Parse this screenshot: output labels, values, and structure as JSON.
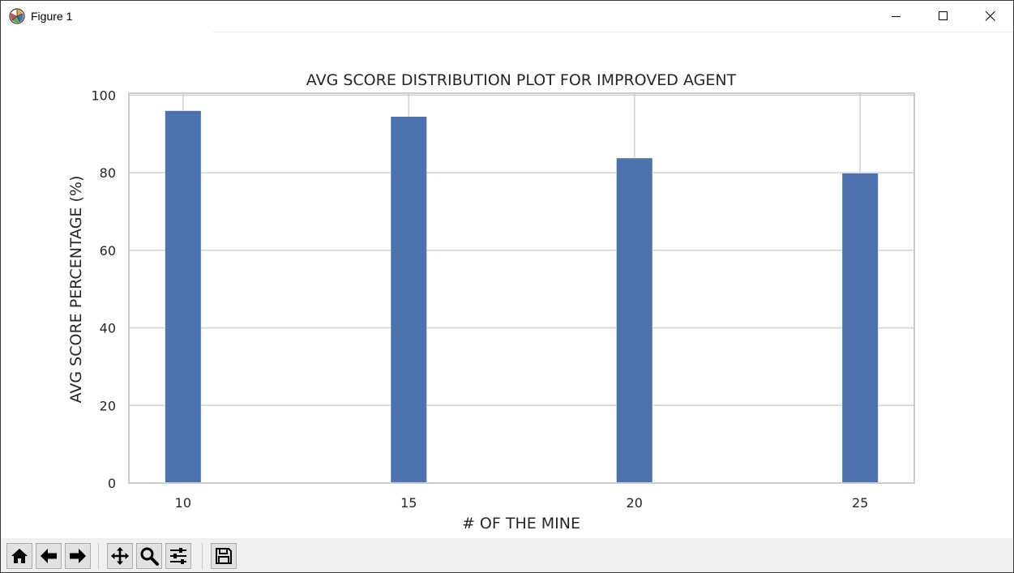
{
  "window": {
    "title": "Figure 1",
    "icon": "matplotlib-icon",
    "controls": [
      "minimize-icon",
      "maximize-icon",
      "close-icon"
    ]
  },
  "toolbar": {
    "buttons": [
      {
        "name": "home",
        "icon": "home-icon"
      },
      {
        "name": "back",
        "icon": "back-arrow-icon"
      },
      {
        "name": "forward",
        "icon": "forward-arrow-icon"
      },
      {
        "name": "pan",
        "icon": "pan-icon"
      },
      {
        "name": "zoom",
        "icon": "zoom-icon"
      },
      {
        "name": "subplots",
        "icon": "configure-subplots-icon"
      },
      {
        "name": "save",
        "icon": "save-icon"
      }
    ]
  },
  "chart_data": {
    "type": "bar",
    "title": "AVG SCORE DISTRIBUTION PLOT FOR IMPROVED AGENT",
    "xlabel": "# OF THE MINE",
    "ylabel": "AVG SCORE PERCENTAGE (%)",
    "categories": [
      "10",
      "15",
      "20",
      "25"
    ],
    "x": [
      10,
      15,
      20,
      25
    ],
    "values": [
      96,
      94.5,
      83.8,
      79.9
    ],
    "xlim": [
      8.8,
      26.2
    ],
    "ylim": [
      0,
      100.5
    ],
    "yticks": [
      "0",
      "20",
      "40",
      "60",
      "80",
      "100"
    ],
    "ytick_values": [
      0,
      20,
      40,
      60,
      80,
      100
    ],
    "bar_width": 0.8,
    "bar_color": "#4c72b0",
    "grid": true,
    "grid_color": "#d0d0d0",
    "axes_edge_color": "#cccccc",
    "legend": "none"
  }
}
